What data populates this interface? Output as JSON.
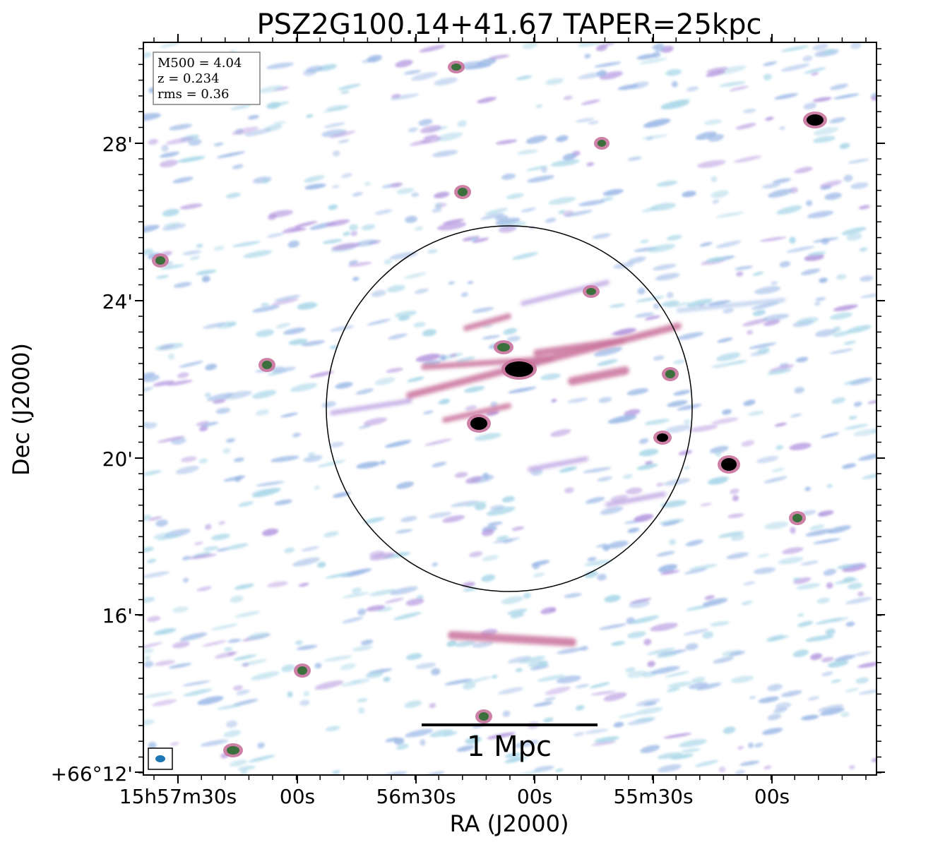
{
  "title": "PSZ2G100.14+41.67 TAPER=25kpc",
  "info_box": {
    "lines": [
      "M500 = 4.04",
      "z = 0.234",
      "rms = 0.36"
    ]
  },
  "axes": {
    "xlabel": "RA (J2000)",
    "ylabel": "Dec (J2000)",
    "x_ticks": [
      "15h57m30s",
      "00s",
      "56m30s",
      "00s",
      "55m30s",
      "00s"
    ],
    "y_ticks": [
      "28'",
      "24'",
      "20'",
      "16'",
      "+66°12'"
    ]
  },
  "scale_bar": {
    "label": "1 Mpc"
  },
  "colors": {
    "noise_light": "#a9d6e8",
    "noise_blue": "#9bb8e6",
    "noise_violet": "#b79be0",
    "emission_pink": "#c9739c",
    "source_green": "#3b6f3b",
    "source_core": "#000000",
    "beam": "#1f77b4"
  }
}
